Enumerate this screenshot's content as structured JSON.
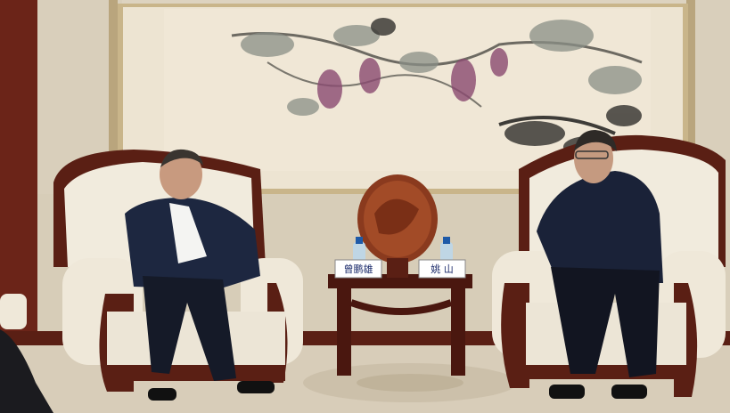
{
  "scene": {
    "description_colors": {
      "wall": "#ddd3c0",
      "painting_bg": "#ede4d2",
      "frame": "#c9b58a",
      "wood": "#5a1f14",
      "chair_upholstery": "#f1ebdd",
      "carpet": "#d8cdb9"
    }
  },
  "nameplates": {
    "left": "曾鹏雄",
    "right": "姚 山"
  },
  "icons": {
    "table_medallion": "carved-wood-medallion-icon",
    "water_bottle": "water-bottle-icon"
  }
}
